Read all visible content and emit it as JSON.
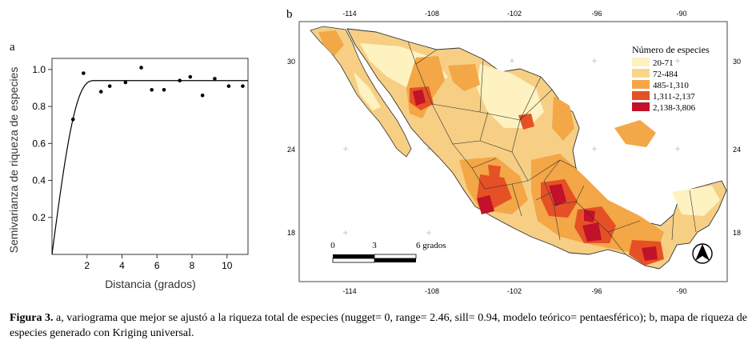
{
  "panel_a": {
    "label": "a",
    "chart_data": {
      "type": "scatter",
      "xlabel": "Distancia (grados)",
      "ylabel": "Semivarianza de riqueza de especies",
      "xlim": [
        0,
        11.2
      ],
      "ylim": [
        0,
        1.06
      ],
      "x_ticks": [
        "2",
        "4",
        "6",
        "8",
        "10"
      ],
      "y_ticks": [
        "0.2",
        "0.4",
        "0.6",
        "0.8",
        "1.0"
      ],
      "points": {
        "x": [
          1.2,
          1.8,
          2.8,
          3.3,
          4.2,
          5.1,
          5.7,
          6.4,
          7.3,
          7.9,
          8.6,
          9.3,
          10.1,
          10.9
        ],
        "y": [
          0.73,
          0.98,
          0.88,
          0.91,
          0.93,
          1.01,
          0.89,
          0.89,
          0.94,
          0.96,
          0.86,
          0.95,
          0.91,
          0.91
        ]
      },
      "model": {
        "nugget": 0,
        "range": 2.46,
        "sill": 0.94
      }
    }
  },
  "panel_b": {
    "label": "b",
    "top_ticks": [
      "-114",
      "-108",
      "-102",
      "-96",
      "-90"
    ],
    "bottom_ticks": [
      "-114",
      "-108",
      "-102",
      "-96",
      "-90"
    ],
    "left_ticks": [
      "30",
      "24",
      "18"
    ],
    "right_ticks": [
      "30",
      "24",
      "18"
    ],
    "legend": {
      "title": "Número de especies",
      "items": [
        {
          "label": "20-71",
          "color": "#fdf2c0"
        },
        {
          "label": "72-484",
          "color": "#f9d58c"
        },
        {
          "label": "485-1,310",
          "color": "#f3a746"
        },
        {
          "label": "1,311-2,137",
          "color": "#e55125"
        },
        {
          "label": "2,138-3,806",
          "color": "#c2112a"
        }
      ]
    },
    "scale_bar": {
      "labels": [
        "0",
        "3",
        "6 grados"
      ]
    }
  },
  "caption": {
    "label": "Figura 3.",
    "text": " a, variograma que mejor se ajustó a la riqueza total de especies (nugget= 0, range= 2.46, sill= 0.94, modelo teórico= pentaesférico); b, mapa de riqueza de especies generado con Kriging universal."
  }
}
